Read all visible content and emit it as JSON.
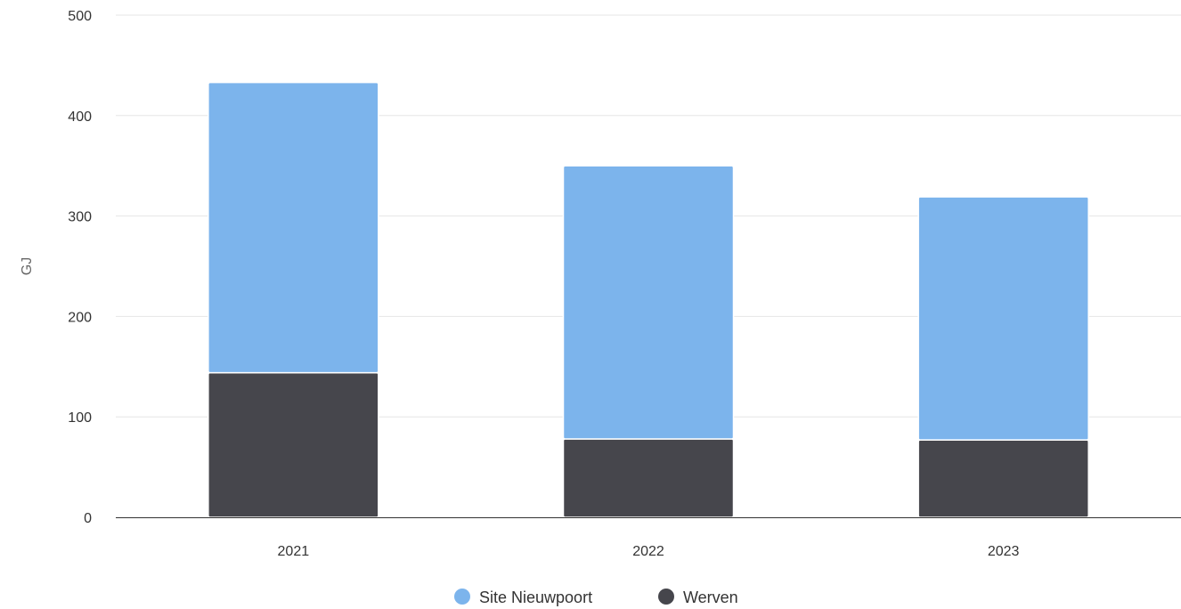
{
  "chart_data": {
    "type": "bar",
    "stacked": true,
    "categories": [
      "2021",
      "2022",
      "2023"
    ],
    "series": [
      {
        "name": "Werven",
        "color": "#46464c",
        "values": [
          144,
          78,
          77
        ]
      },
      {
        "name": "Site Nieuwpoort",
        "color": "#7cb4ec",
        "values": [
          289,
          272,
          242
        ]
      }
    ],
    "ylabel": "GJ",
    "ylim": [
      0,
      500
    ],
    "yticks": [
      0,
      100,
      200,
      300,
      400,
      500
    ],
    "grid": true,
    "legend": {
      "position": "bottom-center",
      "order": [
        "Site Nieuwpoort",
        "Werven"
      ]
    }
  }
}
